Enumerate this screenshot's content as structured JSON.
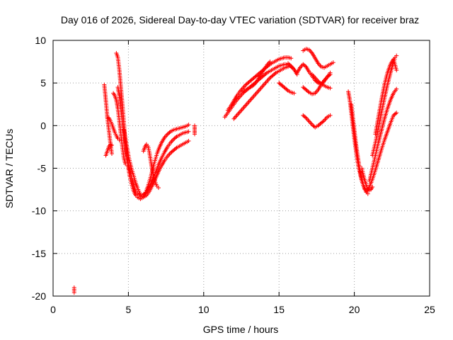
{
  "chart_data": {
    "type": "scatter",
    "title": "Day 016 of 2026, Sidereal Day-to-day VTEC variation (SDTVAR) for receiver braz",
    "xlabel": "GPS time / hours",
    "ylabel": "SDTVAR / TECUs",
    "xlim": [
      0,
      25
    ],
    "ylim": [
      -20,
      10
    ],
    "xticks": [
      0,
      5,
      10,
      15,
      20,
      25
    ],
    "xtick_labels": [
      "0",
      "5",
      "10",
      "15",
      "20",
      "25"
    ],
    "yticks": [
      10,
      5,
      0,
      -5,
      -10,
      -15,
      -20
    ],
    "ytick_labels": [
      "10",
      "5",
      "0",
      "-5",
      "-10",
      "-15",
      "-20"
    ],
    "grid": true,
    "marker": "+",
    "marker_color": "#ff0000",
    "series": [
      {
        "name": "isolated",
        "x": [
          1.4,
          1.4
        ],
        "y": [
          -19.0,
          -19.6
        ]
      },
      {
        "name": "s1",
        "x": [
          3.4,
          3.5,
          3.6,
          3.7,
          3.8,
          3.9
        ],
        "y": [
          4.8,
          3.0,
          1.0,
          -0.5,
          -2.0,
          -3.3
        ]
      },
      {
        "name": "s2",
        "x": [
          3.5,
          3.6,
          3.7,
          3.8,
          3.9
        ],
        "y": [
          -3.5,
          -3.0,
          -2.5,
          -2.2,
          -2.3
        ]
      },
      {
        "name": "s3",
        "x": [
          3.6,
          3.7,
          3.8,
          3.9,
          4.0,
          4.1,
          4.2,
          4.3,
          4.4
        ],
        "y": [
          1.0,
          0.9,
          0.6,
          0.2,
          -0.3,
          -0.8,
          -1.2,
          -1.5,
          -1.7
        ]
      },
      {
        "name": "s4",
        "x": [
          4.0,
          4.1,
          4.2,
          4.3,
          4.4,
          4.5,
          4.6,
          4.7,
          4.8
        ],
        "y": [
          3.8,
          3.5,
          3.0,
          2.0,
          0.5,
          -1.0,
          -2.5,
          -3.8,
          -4.5
        ]
      },
      {
        "name": "s5",
        "x": [
          4.2,
          4.3,
          4.4,
          4.5,
          4.6,
          4.7,
          4.8,
          4.9,
          5.0,
          5.1,
          5.2,
          5.3,
          5.4,
          5.5,
          5.6,
          5.7,
          5.8,
          5.9,
          6.0,
          6.1,
          6.2,
          6.3,
          6.4,
          6.5,
          6.6,
          6.7,
          6.8,
          6.9,
          7.0,
          7.2,
          7.4,
          7.6,
          7.8,
          8.0,
          8.2,
          8.4,
          8.6,
          8.8,
          9.0
        ],
        "y": [
          8.5,
          8.0,
          6.5,
          4.5,
          2.5,
          0.3,
          -2.0,
          -3.8,
          -5.0,
          -6.0,
          -6.8,
          -7.4,
          -7.9,
          -8.2,
          -8.4,
          -8.5,
          -8.6,
          -8.5,
          -8.3,
          -8.0,
          -7.6,
          -7.1,
          -6.5,
          -5.9,
          -5.2,
          -4.5,
          -3.9,
          -3.3,
          -2.8,
          -2.0,
          -1.4,
          -1.0,
          -0.7,
          -0.5,
          -0.4,
          -0.3,
          -0.2,
          -0.1,
          0.1
        ]
      },
      {
        "name": "s6",
        "x": [
          4.3,
          4.4,
          4.5,
          4.6,
          4.7,
          4.8,
          4.9,
          5.0,
          5.1,
          5.2,
          5.3,
          5.4,
          5.5
        ],
        "y": [
          4.5,
          3.5,
          2.0,
          0.5,
          -1.0,
          -2.3,
          -3.5,
          -4.5,
          -5.3,
          -6.0,
          -6.7,
          -7.3,
          -7.8
        ]
      },
      {
        "name": "s7",
        "x": [
          4.7,
          4.8,
          4.9,
          5.0,
          5.1,
          5.2,
          5.3,
          5.4,
          5.5,
          5.6,
          5.7,
          5.8
        ],
        "y": [
          -0.5,
          -1.5,
          -2.5,
          -3.5,
          -4.3,
          -5.0,
          -5.6,
          -6.2,
          -6.8,
          -7.3,
          -7.7,
          -8.1
        ]
      },
      {
        "name": "s8",
        "x": [
          5.6,
          5.8,
          6.0,
          6.2,
          6.4,
          6.6,
          6.8,
          7.0,
          7.2,
          7.4,
          7.6,
          7.8,
          8.0,
          8.2,
          8.4,
          8.6,
          8.8,
          9.0
        ],
        "y": [
          -8.0,
          -8.2,
          -8.1,
          -7.8,
          -7.2,
          -6.4,
          -5.5,
          -4.6,
          -3.8,
          -3.1,
          -2.5,
          -2.0,
          -1.6,
          -1.3,
          -1.1,
          -0.9,
          -0.8,
          -0.7
        ]
      },
      {
        "name": "s9",
        "x": [
          5.8,
          6.0,
          6.2,
          6.4,
          6.6,
          6.8,
          7.0,
          7.2,
          7.4,
          7.6,
          7.8,
          8.0,
          8.2,
          8.4,
          8.6,
          8.8,
          9.0
        ],
        "y": [
          -8.3,
          -8.4,
          -8.2,
          -7.7,
          -7.0,
          -6.2,
          -5.4,
          -4.7,
          -4.1,
          -3.6,
          -3.2,
          -2.9,
          -2.6,
          -2.4,
          -2.2,
          -2.0,
          -1.8
        ]
      },
      {
        "name": "s10",
        "x": [
          6.0,
          6.1,
          6.2,
          6.3,
          6.4,
          6.5,
          6.6,
          6.7,
          6.8,
          6.9,
          7.0
        ],
        "y": [
          -3.0,
          -2.5,
          -2.2,
          -2.4,
          -3.2,
          -4.3,
          -5.3,
          -6.1,
          -6.7,
          -7.1,
          -7.3
        ]
      },
      {
        "name": "s11",
        "x": [
          9.4,
          9.4,
          9.4
        ],
        "y": [
          0.0,
          -0.5,
          -1.0
        ]
      },
      {
        "name": "s12",
        "x": [
          11.4,
          11.6,
          11.8,
          12.0,
          12.2,
          12.4,
          12.6,
          12.8,
          13.0,
          13.2,
          13.4,
          13.6,
          13.8,
          14.0,
          14.2,
          14.4,
          14.6,
          14.8,
          15.0,
          15.2,
          15.4,
          15.6,
          15.8,
          16.0
        ],
        "y": [
          1.0,
          1.5,
          2.0,
          2.5,
          3.0,
          3.4,
          3.8,
          4.1,
          4.4,
          4.7,
          5.0,
          5.3,
          5.6,
          5.9,
          6.2,
          6.4,
          6.6,
          6.8,
          7.0,
          7.1,
          7.2,
          7.1,
          6.9,
          6.6
        ]
      },
      {
        "name": "s13",
        "x": [
          11.6,
          11.8,
          12.0,
          12.2,
          12.4,
          12.6,
          12.8,
          13.0,
          13.2,
          13.4,
          13.6,
          13.8,
          14.0,
          14.2,
          14.4,
          14.6,
          14.8,
          15.0,
          15.2,
          15.4,
          15.6,
          15.8
        ],
        "y": [
          1.8,
          2.3,
          2.9,
          3.5,
          4.0,
          4.4,
          4.8,
          5.1,
          5.4,
          5.7,
          6.0,
          6.3,
          6.6,
          6.9,
          7.2,
          7.4,
          7.6,
          7.8,
          7.9,
          8.0,
          8.0,
          7.9
        ]
      },
      {
        "name": "s14",
        "x": [
          12.0,
          12.2,
          12.4,
          12.6,
          12.8,
          13.0,
          13.2,
          13.4,
          13.6,
          13.8,
          14.0,
          14.2,
          14.4,
          14.6,
          14.8,
          15.0,
          15.2,
          15.4,
          15.6
        ],
        "y": [
          0.8,
          1.2,
          1.6,
          2.0,
          2.4,
          2.8,
          3.2,
          3.6,
          4.0,
          4.4,
          4.8,
          5.2,
          5.6,
          5.9,
          6.2,
          6.4,
          6.6,
          6.8,
          6.9
        ]
      },
      {
        "name": "s15",
        "x": [
          12.6,
          12.8,
          13.0,
          13.2,
          13.4,
          13.6,
          13.8,
          14.0,
          14.2,
          14.4
        ],
        "y": [
          4.0,
          4.2,
          4.4,
          4.6,
          4.9,
          5.4,
          6.0,
          6.6,
          7.1,
          7.5
        ]
      },
      {
        "name": "s16",
        "x": [
          15.0,
          15.2,
          15.4,
          15.6,
          15.8,
          16.0
        ],
        "y": [
          5.0,
          4.7,
          4.4,
          4.1,
          3.9,
          3.8
        ]
      },
      {
        "name": "s17",
        "x": [
          15.6,
          15.8,
          16.0,
          16.1,
          16.2
        ],
        "y": [
          7.3,
          7.0,
          6.6,
          6.3,
          6.0
        ]
      },
      {
        "name": "s18",
        "x": [
          16.2,
          16.4,
          16.6,
          16.8,
          17.0,
          17.2,
          17.4,
          17.6,
          17.8,
          18.0,
          18.2,
          18.4
        ],
        "y": [
          6.2,
          6.8,
          7.2,
          6.9,
          6.3,
          5.8,
          5.3,
          5.0,
          4.9,
          5.2,
          5.7,
          6.2
        ]
      },
      {
        "name": "s19",
        "x": [
          16.6,
          16.8,
          17.0,
          17.2,
          17.4,
          17.6,
          17.8,
          18.0,
          18.2,
          18.4
        ],
        "y": [
          4.5,
          4.2,
          3.9,
          3.7,
          3.8,
          4.2,
          4.8,
          5.3,
          5.7,
          6.0
        ]
      },
      {
        "name": "s20",
        "x": [
          16.6,
          16.8,
          17.0,
          17.2,
          17.4,
          17.6,
          17.8,
          18.0,
          18.2,
          18.4
        ],
        "y": [
          1.2,
          0.9,
          0.5,
          0.1,
          -0.2,
          0.0,
          0.3,
          0.6,
          1.0,
          1.2
        ]
      },
      {
        "name": "s21",
        "x": [
          16.6,
          16.8,
          17.0,
          17.2,
          17.4,
          17.6,
          17.8,
          18.0,
          18.2,
          18.4,
          18.6
        ],
        "y": [
          8.8,
          9.0,
          8.9,
          8.5,
          7.9,
          7.3,
          6.9,
          6.8,
          7.0,
          7.2,
          7.4
        ]
      },
      {
        "name": "s22",
        "x": [
          17.2,
          17.4,
          17.6,
          17.8,
          18.0,
          18.2,
          18.4
        ],
        "y": [
          6.0,
          5.6,
          5.2,
          4.9,
          4.7,
          4.5,
          4.4
        ]
      },
      {
        "name": "s23",
        "x": [
          19.6,
          19.7,
          19.8,
          19.9,
          20.0,
          20.1,
          20.2,
          20.3,
          20.4,
          20.5,
          20.6,
          20.7
        ],
        "y": [
          4.0,
          3.0,
          1.5,
          0.0,
          -1.5,
          -2.8,
          -4.0,
          -5.0,
          -5.8,
          -6.5,
          -7.0,
          -7.4
        ]
      },
      {
        "name": "s24",
        "x": [
          19.8,
          19.9,
          20.0,
          20.1,
          20.2,
          20.3,
          20.4,
          20.5,
          20.6,
          20.7,
          20.8,
          20.9
        ],
        "y": [
          2.5,
          1.0,
          -0.5,
          -2.0,
          -3.3,
          -4.5,
          -5.5,
          -6.3,
          -7.0,
          -7.5,
          -7.8,
          -8.0
        ]
      },
      {
        "name": "s25",
        "x": [
          20.8,
          21.0,
          21.2,
          21.4,
          21.6,
          21.8,
          22.0,
          22.2,
          22.4,
          22.6,
          22.8
        ],
        "y": [
          -7.8,
          -7.2,
          -6.3,
          -5.2,
          -4.0,
          -2.8,
          -1.7,
          -0.7,
          0.3,
          1.2,
          1.5
        ]
      },
      {
        "name": "s26",
        "x": [
          21.0,
          21.2,
          21.4,
          21.6,
          21.8,
          22.0,
          22.2,
          22.4,
          22.6,
          22.8
        ],
        "y": [
          -6.5,
          -5.0,
          -3.5,
          -2.0,
          -0.6,
          0.8,
          2.0,
          3.0,
          3.8,
          4.3
        ]
      },
      {
        "name": "s27",
        "x": [
          21.2,
          21.4,
          21.6,
          21.8,
          22.0,
          22.2,
          22.4,
          22.6,
          22.7,
          22.8
        ],
        "y": [
          -3.5,
          -2.0,
          -0.3,
          1.5,
          3.2,
          4.8,
          6.2,
          7.4,
          8.0,
          8.2
        ]
      },
      {
        "name": "s28",
        "x": [
          21.4,
          21.6,
          21.8,
          22.0,
          22.2,
          22.4,
          22.6,
          22.8
        ],
        "y": [
          -1.0,
          1.0,
          3.0,
          4.8,
          6.2,
          7.2,
          7.8,
          6.5
        ]
      },
      {
        "name": "s29",
        "x": [
          20.5,
          20.6,
          20.7,
          20.8,
          20.9,
          21.0,
          21.1,
          21.2
        ],
        "y": [
          -5.0,
          -5.8,
          -6.5,
          -7.0,
          -7.4,
          -7.6,
          -7.5,
          -7.2
        ]
      }
    ]
  }
}
